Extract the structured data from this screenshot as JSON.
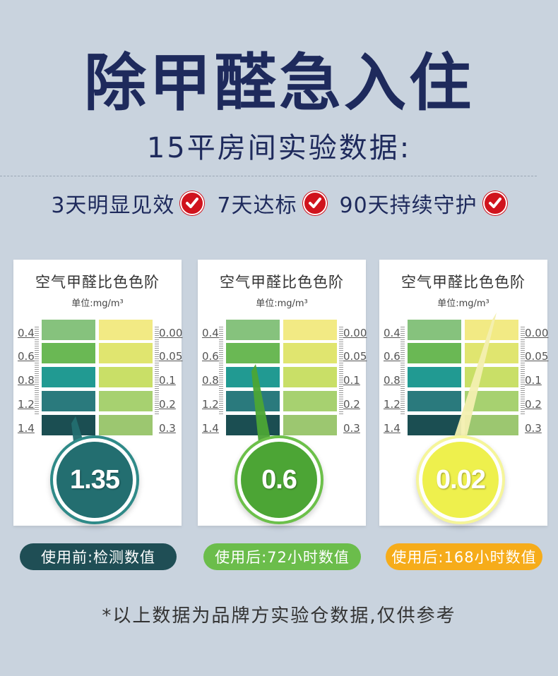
{
  "header": {
    "title": "除甲醛急入住",
    "subtitle": "15平房间实验数据:"
  },
  "effects": [
    {
      "label": "3天明显见效",
      "icon": "red-check-icon"
    },
    {
      "label": "7天达标",
      "icon": "red-check-icon"
    },
    {
      "label": "90天持续守护",
      "icon": "red-check-icon"
    }
  ],
  "colors": {
    "background": "#c9d3de",
    "title": "#1e2a5c",
    "check": "#d0131d",
    "left_swatches": [
      "#86c27d",
      "#6ab854",
      "#219a92",
      "#2a7a7d",
      "#1b4e52"
    ],
    "right_swatches": [
      "#f2ea84",
      "#e0e56f",
      "#c9df67",
      "#a7d170",
      "#9cc770"
    ]
  },
  "cards": [
    {
      "title": "空气甲醛比色色阶",
      "unit": "单位:mg/m³",
      "left_scale": [
        "0.4",
        "0.6",
        "0.8",
        "1.2",
        "1.4"
      ],
      "right_scale": [
        "0.00",
        "0.05",
        "0.1",
        "0.2",
        "0.3"
      ],
      "reading": "1.35",
      "badge_color": "#236e70",
      "ring_color": "#2f8a88"
    },
    {
      "title": "空气甲醛比色色阶",
      "unit": "单位:mg/m³",
      "left_scale": [
        "0.4",
        "0.6",
        "0.8",
        "1.2",
        "1.4"
      ],
      "right_scale": [
        "0.00",
        "0.05",
        "0.1",
        "0.2",
        "0.3"
      ],
      "reading": "0.6",
      "badge_color": "#4ca535",
      "ring_color": "#6cc04a"
    },
    {
      "title": "空气甲醛比色色阶",
      "unit": "单位:mg/m³",
      "left_scale": [
        "0.4",
        "0.6",
        "0.8",
        "1.2",
        "1.4"
      ],
      "right_scale": [
        "0.00",
        "0.05",
        "0.1",
        "0.2",
        "0.3"
      ],
      "reading": "0.02",
      "badge_color": "#eef04d",
      "ring_color": "#f5f59a"
    }
  ],
  "pills": [
    {
      "label": "使用前:检测数值",
      "color": "#1f4e55"
    },
    {
      "label": "使用后:72小时数值",
      "color": "#6bbd4b"
    },
    {
      "label": "使用后:168小时数值",
      "color": "#f6ac1a"
    }
  ],
  "footnote": "*以上数据为品牌方实验仓数据,仅供参考"
}
